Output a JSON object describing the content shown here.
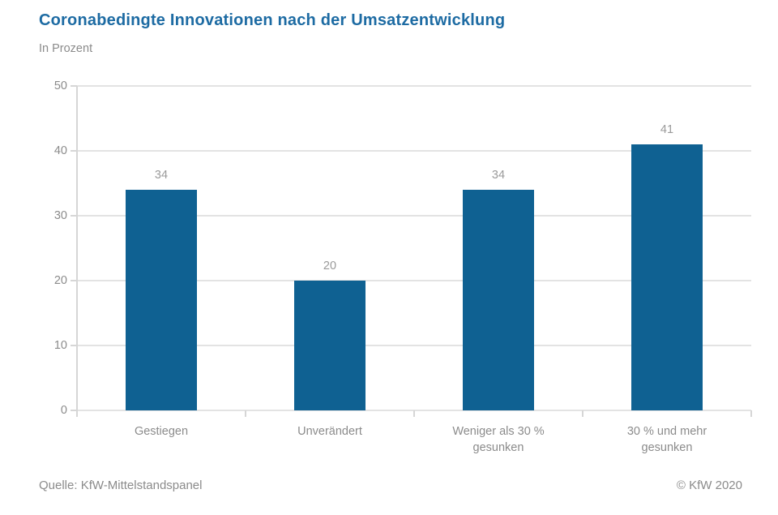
{
  "title": "Coronabedingte Innovationen nach der Umsatzentwicklung",
  "subtitle": "In Prozent",
  "footer": {
    "source": "Quelle: KfW-Mittelstandspanel",
    "copyright": "© KfW 2020"
  },
  "colors": {
    "title": "#1d6ba3",
    "bar": "#0f6192",
    "grid": "#e3e3e3",
    "axis": "#d6d6d6",
    "axis_text": "#8b8b8b",
    "value_label": "#9a9a9a",
    "footer_text": "#8b8b8b",
    "background": "#ffffff"
  },
  "chart_data": {
    "type": "bar",
    "categories": [
      "Gestiegen",
      "Unverändert",
      "Weniger als 30 %\ngesunken",
      "30 % und mehr\ngesunken"
    ],
    "values": [
      34,
      20,
      34,
      41
    ],
    "value_labels": [
      "34",
      "20",
      "34",
      "41"
    ],
    "title": "Coronabedingte Innovationen nach der Umsatzentwicklung",
    "xlabel": "",
    "ylabel": "In Prozent",
    "ylim": [
      0,
      50
    ],
    "yticks": [
      0,
      10,
      20,
      30,
      40,
      50
    ],
    "ytick_labels": [
      "0",
      "10",
      "20",
      "30",
      "40",
      "50"
    ],
    "grid": true,
    "legend": false,
    "bar_orientation": "vertical"
  }
}
